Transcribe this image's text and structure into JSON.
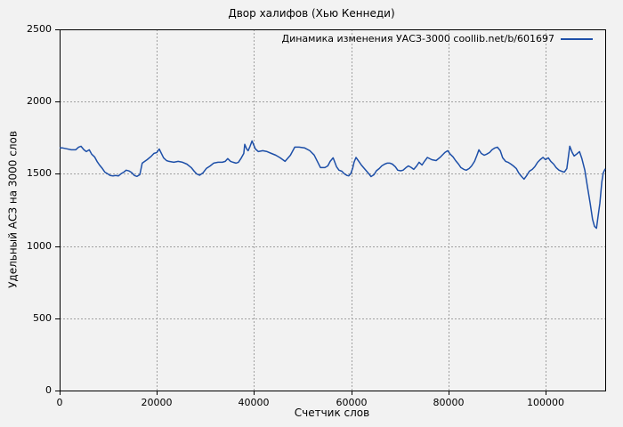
{
  "chart_data": {
    "type": "line",
    "title": "Двор халифов (Хью Кеннеди)",
    "xlabel": "Счетчик слов",
    "ylabel": "Удельный АСЗ на 3000 слов",
    "xlim": [
      0,
      112300
    ],
    "ylim": [
      0,
      2500
    ],
    "x_ticks": [
      0,
      20000,
      40000,
      60000,
      80000,
      100000
    ],
    "y_ticks": [
      0,
      500,
      1000,
      1500,
      2000,
      2500
    ],
    "grid": true,
    "grid_style": "dashed-gray",
    "legend_position": "top-right-inside",
    "colors": {
      "background": "#f2f2f2",
      "frame": "#000000",
      "grid": "#a0a0a0",
      "line": "#1d4fa8"
    },
    "series": [
      {
        "name": "Динамика изменения УАСЗ-3000 coollib.net/b/601697",
        "color": "#1d4fa8",
        "points": [
          [
            0,
            1679
          ],
          [
            600,
            1679
          ],
          [
            1500,
            1673
          ],
          [
            2400,
            1666
          ],
          [
            3300,
            1666
          ],
          [
            3900,
            1685
          ],
          [
            4400,
            1691
          ],
          [
            5000,
            1666
          ],
          [
            5500,
            1654
          ],
          [
            6100,
            1666
          ],
          [
            6600,
            1636
          ],
          [
            7200,
            1617
          ],
          [
            7700,
            1586
          ],
          [
            8200,
            1561
          ],
          [
            8800,
            1537
          ],
          [
            9300,
            1512
          ],
          [
            9900,
            1500
          ],
          [
            10400,
            1488
          ],
          [
            11000,
            1485
          ],
          [
            11500,
            1488
          ],
          [
            12100,
            1485
          ],
          [
            12600,
            1500
          ],
          [
            13200,
            1512
          ],
          [
            13700,
            1525
          ],
          [
            14300,
            1520
          ],
          [
            14800,
            1509
          ],
          [
            15400,
            1488
          ],
          [
            15900,
            1482
          ],
          [
            16500,
            1494
          ],
          [
            17000,
            1574
          ],
          [
            18000,
            1598
          ],
          [
            18900,
            1623
          ],
          [
            19400,
            1641
          ],
          [
            20000,
            1648
          ],
          [
            20500,
            1672
          ],
          [
            21400,
            1611
          ],
          [
            22000,
            1592
          ],
          [
            22500,
            1586
          ],
          [
            23500,
            1580
          ],
          [
            24400,
            1586
          ],
          [
            25300,
            1580
          ],
          [
            26200,
            1567
          ],
          [
            27100,
            1543
          ],
          [
            27700,
            1518
          ],
          [
            28200,
            1500
          ],
          [
            28800,
            1490
          ],
          [
            29500,
            1506
          ],
          [
            30200,
            1537
          ],
          [
            31000,
            1555
          ],
          [
            31700,
            1574
          ],
          [
            32600,
            1580
          ],
          [
            33500,
            1580
          ],
          [
            34100,
            1586
          ],
          [
            34600,
            1605
          ],
          [
            35200,
            1586
          ],
          [
            35700,
            1580
          ],
          [
            36300,
            1574
          ],
          [
            36800,
            1580
          ],
          [
            37400,
            1611
          ],
          [
            37900,
            1641
          ],
          [
            38100,
            1704
          ],
          [
            38500,
            1672
          ],
          [
            38800,
            1660
          ],
          [
            39200,
            1691
          ],
          [
            39600,
            1728
          ],
          [
            39900,
            1704
          ],
          [
            40300,
            1672
          ],
          [
            40900,
            1654
          ],
          [
            41800,
            1660
          ],
          [
            42700,
            1654
          ],
          [
            43600,
            1641
          ],
          [
            44500,
            1629
          ],
          [
            45400,
            1611
          ],
          [
            46400,
            1586
          ],
          [
            46900,
            1605
          ],
          [
            47500,
            1629
          ],
          [
            48400,
            1685
          ],
          [
            49300,
            1685
          ],
          [
            50400,
            1680
          ],
          [
            51500,
            1660
          ],
          [
            52400,
            1630
          ],
          [
            53700,
            1543
          ],
          [
            54600,
            1543
          ],
          [
            55200,
            1555
          ],
          [
            55700,
            1586
          ],
          [
            56300,
            1611
          ],
          [
            57000,
            1549
          ],
          [
            57500,
            1525
          ],
          [
            58100,
            1518
          ],
          [
            58600,
            1500
          ],
          [
            59200,
            1488
          ],
          [
            59500,
            1486
          ],
          [
            59900,
            1500
          ],
          [
            60300,
            1537
          ],
          [
            60600,
            1580
          ],
          [
            61000,
            1613
          ],
          [
            61600,
            1586
          ],
          [
            62100,
            1561
          ],
          [
            62700,
            1537
          ],
          [
            63200,
            1518
          ],
          [
            63800,
            1494
          ],
          [
            64100,
            1481
          ],
          [
            64700,
            1494
          ],
          [
            65200,
            1521
          ],
          [
            65800,
            1537
          ],
          [
            66300,
            1555
          ],
          [
            66900,
            1567
          ],
          [
            67400,
            1574
          ],
          [
            68000,
            1574
          ],
          [
            68500,
            1567
          ],
          [
            69100,
            1549
          ],
          [
            69600,
            1525
          ],
          [
            70200,
            1521
          ],
          [
            70700,
            1525
          ],
          [
            71300,
            1543
          ],
          [
            71800,
            1555
          ],
          [
            72400,
            1543
          ],
          [
            72900,
            1531
          ],
          [
            73500,
            1555
          ],
          [
            74000,
            1580
          ],
          [
            74600,
            1561
          ],
          [
            75100,
            1586
          ],
          [
            75700,
            1613
          ],
          [
            76600,
            1598
          ],
          [
            77500,
            1592
          ],
          [
            78400,
            1617
          ],
          [
            79300,
            1648
          ],
          [
            79900,
            1660
          ],
          [
            80400,
            1636
          ],
          [
            81000,
            1617
          ],
          [
            81500,
            1592
          ],
          [
            82100,
            1567
          ],
          [
            82600,
            1543
          ],
          [
            83200,
            1531
          ],
          [
            83700,
            1525
          ],
          [
            84300,
            1537
          ],
          [
            84800,
            1555
          ],
          [
            85400,
            1586
          ],
          [
            85900,
            1629
          ],
          [
            86300,
            1666
          ],
          [
            86800,
            1641
          ],
          [
            87400,
            1629
          ],
          [
            87900,
            1636
          ],
          [
            88500,
            1648
          ],
          [
            89000,
            1666
          ],
          [
            89600,
            1679
          ],
          [
            90100,
            1685
          ],
          [
            90700,
            1660
          ],
          [
            91200,
            1611
          ],
          [
            91800,
            1586
          ],
          [
            92300,
            1580
          ],
          [
            92900,
            1567
          ],
          [
            93400,
            1555
          ],
          [
            94000,
            1537
          ],
          [
            94500,
            1506
          ],
          [
            95100,
            1481
          ],
          [
            95600,
            1463
          ],
          [
            96200,
            1491
          ],
          [
            96700,
            1518
          ],
          [
            97300,
            1531
          ],
          [
            97800,
            1549
          ],
          [
            98400,
            1580
          ],
          [
            98900,
            1598
          ],
          [
            99500,
            1614
          ],
          [
            100000,
            1598
          ],
          [
            100600,
            1611
          ],
          [
            101100,
            1586
          ],
          [
            101700,
            1567
          ],
          [
            102200,
            1543
          ],
          [
            102800,
            1525
          ],
          [
            103300,
            1518
          ],
          [
            103900,
            1512
          ],
          [
            104400,
            1537
          ],
          [
            105000,
            1691
          ],
          [
            105500,
            1648
          ],
          [
            105900,
            1623
          ],
          [
            106400,
            1636
          ],
          [
            107000,
            1654
          ],
          [
            107500,
            1605
          ],
          [
            108100,
            1525
          ],
          [
            108600,
            1420
          ],
          [
            109200,
            1296
          ],
          [
            109700,
            1185
          ],
          [
            110100,
            1136
          ],
          [
            110500,
            1123
          ],
          [
            110800,
            1197
          ],
          [
            111200,
            1296
          ],
          [
            111600,
            1444
          ],
          [
            111900,
            1506
          ],
          [
            112300,
            1535
          ]
        ]
      }
    ]
  }
}
